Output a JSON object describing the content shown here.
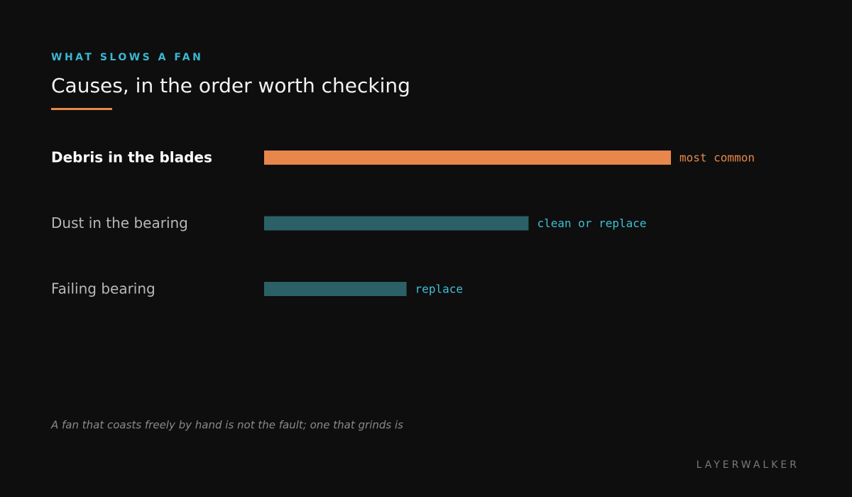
{
  "chart_data": {
    "type": "bar",
    "orientation": "horizontal",
    "eyebrow": "WHAT SLOWS A FAN",
    "title": "Causes, in the order worth checking",
    "categories": [
      "Debris in the blades",
      "Dust in the bearing",
      "Failing bearing"
    ],
    "values": [
      100,
      65,
      35
    ],
    "colors": [
      "#e8874b",
      "#2b6067",
      "#2b6067"
    ],
    "notes": [
      "most common",
      "clean or replace",
      "replace"
    ],
    "note_colors": [
      "#e8874b",
      "#3fbfd6",
      "#3fbfd6"
    ],
    "xlim": [
      0,
      100
    ],
    "footnote": "A fan that coasts freely by hand is not the fault; one that grinds is",
    "brand": "LAYERWALKER"
  }
}
